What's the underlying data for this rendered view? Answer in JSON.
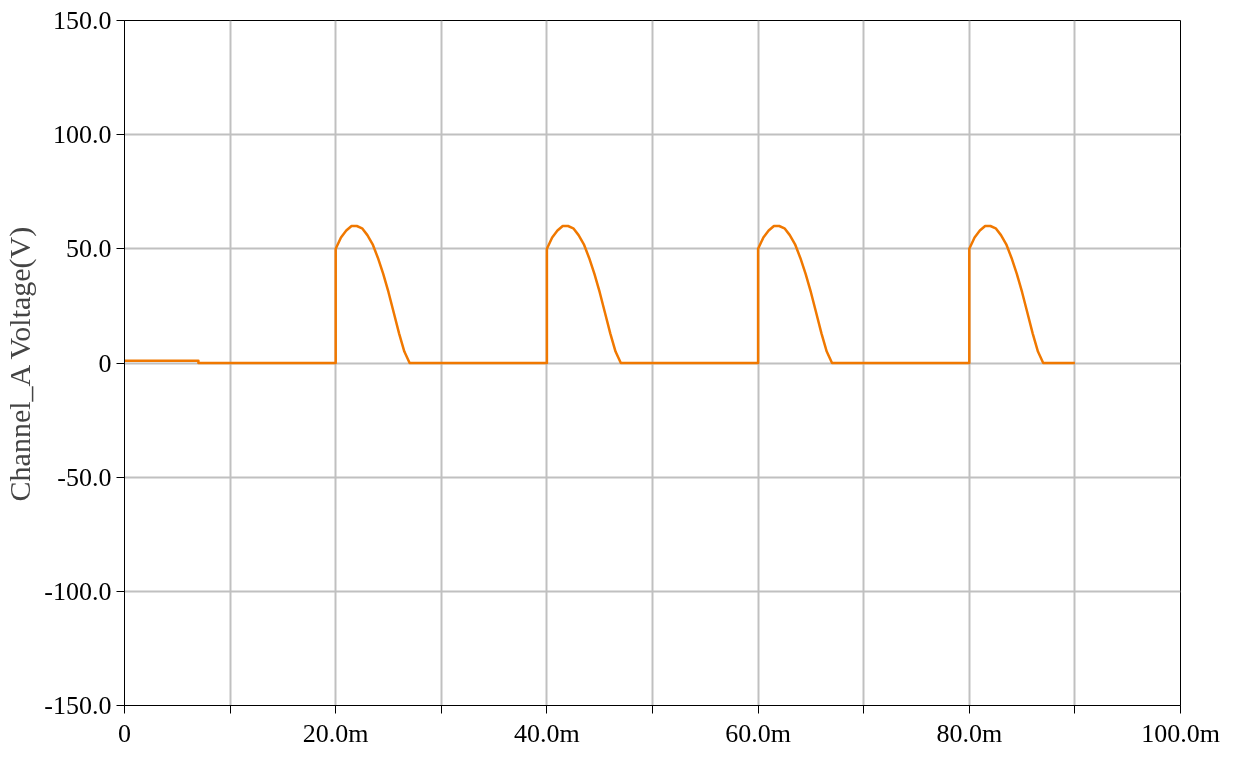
{
  "chart_data": {
    "type": "line",
    "ylabel": "Channel_A Voltage(V)",
    "series": [
      {
        "color": "#f07800",
        "x": [
          0,
          7,
          7,
          20,
          20,
          20.5,
          21,
          21.5,
          22,
          22.5,
          23,
          23.5,
          24,
          24.5,
          25,
          25.5,
          26,
          26.5,
          27,
          40,
          40,
          40.5,
          41,
          41.5,
          42,
          42.5,
          43,
          43.5,
          44,
          44.5,
          45,
          45.5,
          46,
          46.5,
          47,
          60,
          60,
          60.5,
          61,
          61.5,
          62,
          62.5,
          63,
          63.5,
          64,
          64.5,
          65,
          65.5,
          66,
          66.5,
          67,
          80,
          80,
          80.5,
          81,
          81.5,
          82,
          82.5,
          83,
          83.5,
          84,
          84.5,
          85,
          85.5,
          86,
          86.5,
          87,
          90
        ],
        "values": [
          1,
          1,
          0,
          0,
          50,
          55,
          58,
          60,
          60,
          59,
          56,
          52,
          46,
          39,
          31,
          22,
          13,
          5,
          0,
          0,
          50,
          55,
          58,
          60,
          60,
          59,
          56,
          52,
          46,
          39,
          31,
          22,
          13,
          5,
          0,
          0,
          50,
          55,
          58,
          60,
          60,
          59,
          56,
          52,
          46,
          39,
          31,
          22,
          13,
          5,
          0,
          0,
          50,
          55,
          58,
          60,
          60,
          59,
          56,
          52,
          46,
          39,
          31,
          22,
          13,
          5,
          0,
          0
        ]
      }
    ],
    "xlim": [
      0,
      100
    ],
    "ylim": [
      -150,
      150
    ],
    "xticks": [
      0,
      {
        "value": 10,
        "label": null
      },
      {
        "value": 20,
        "label": "20.0m"
      },
      {
        "value": 30,
        "label": null
      },
      {
        "value": 40,
        "label": "40.0m"
      },
      {
        "value": 50,
        "label": null
      },
      {
        "value": 60,
        "label": "60.0m"
      },
      {
        "value": 70,
        "label": null
      },
      {
        "value": 80,
        "label": "80.0m"
      },
      {
        "value": 90,
        "label": null
      },
      {
        "value": 100,
        "label": "100.0m"
      }
    ],
    "yticks": [
      {
        "value": -150,
        "label": "-150.0"
      },
      {
        "value": -100,
        "label": "-100.0"
      },
      {
        "value": -50,
        "label": "-50.0"
      },
      0,
      {
        "value": 50,
        "label": "50.0"
      },
      {
        "value": 100,
        "label": "100.0"
      },
      {
        "value": 150,
        "label": "150.0"
      }
    ],
    "grid": true,
    "marker": "none",
    "line_style": "solid"
  }
}
